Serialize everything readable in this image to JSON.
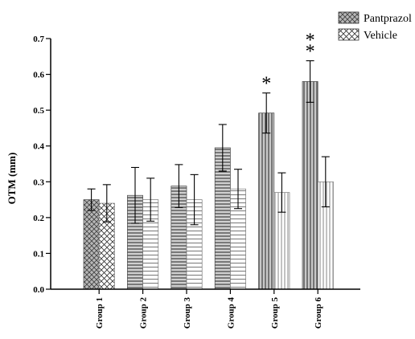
{
  "chart_data": {
    "type": "bar",
    "categories": [
      "Group 1",
      "Group 2",
      "Group 3",
      "Group 4",
      "Group 5",
      "Group 6"
    ],
    "series": [
      {
        "name": "Pantprazol",
        "values": [
          0.25,
          0.262,
          0.288,
          0.395,
          0.492,
          0.58
        ],
        "errors": [
          0.03,
          0.078,
          0.06,
          0.065,
          0.056,
          0.058
        ],
        "annotations": [
          "",
          "",
          "",
          "",
          "*",
          "**"
        ]
      },
      {
        "name": "Vehicle",
        "values": [
          0.24,
          0.25,
          0.25,
          0.28,
          0.27,
          0.3
        ],
        "errors": [
          0.052,
          0.06,
          0.07,
          0.055,
          0.055,
          0.07
        ],
        "annotations": [
          "",
          "",
          "",
          "",
          "",
          ""
        ]
      }
    ],
    "xlabel": "",
    "ylabel": "OTM (mm)",
    "ylim": [
      0,
      0.7
    ],
    "yticks": [
      "0.0",
      "0.1",
      "0.2",
      "0.3",
      "0.4",
      "0.5",
      "0.6",
      "0.7"
    ],
    "grid": false,
    "legend": "top-right",
    "patterns": [
      [
        "crosshatch",
        "crosshatch-open"
      ],
      [
        "hlines",
        "hlines-open"
      ],
      [
        "hlines",
        "hlines-open"
      ],
      [
        "hlines",
        "hlines-open"
      ],
      [
        "vlines",
        "vlines-open"
      ],
      [
        "vlines",
        "vlines-open"
      ]
    ]
  }
}
